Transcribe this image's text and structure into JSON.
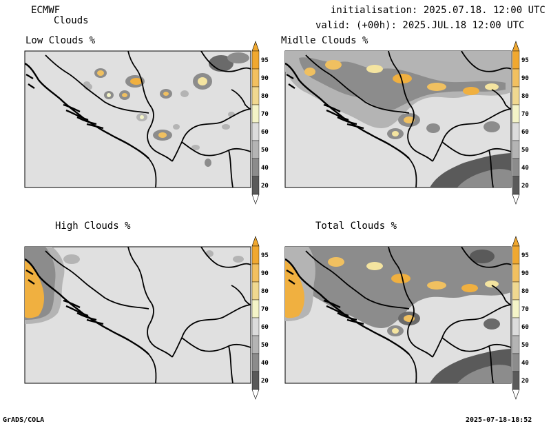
{
  "header": {
    "model": "ECMWF",
    "product": "Clouds",
    "initialisation": "initialisation: 2025.07.18. 12:00 UTC",
    "valid": "valid: (+00h): 2025.JUL.18 12:00 UTC"
  },
  "panels": [
    {
      "title": "Low Clouds %"
    },
    {
      "title": "Midlle Clouds %"
    },
    {
      "title": "High Clouds %"
    },
    {
      "title": "Total Clouds %"
    }
  ],
  "colorbar": {
    "levels": [
      "95",
      "90",
      "80",
      "70",
      "60",
      "50",
      "40",
      "20"
    ],
    "colors": [
      "#f0a830",
      "#f2c060",
      "#f0d890",
      "#f4f4c8",
      "#dcdcdc",
      "#b4b4b4",
      "#8c8c8c",
      "#5a5a5a"
    ]
  },
  "footer": {
    "left": "GrADS/COLA",
    "right": "2025-07-18-18:52"
  }
}
